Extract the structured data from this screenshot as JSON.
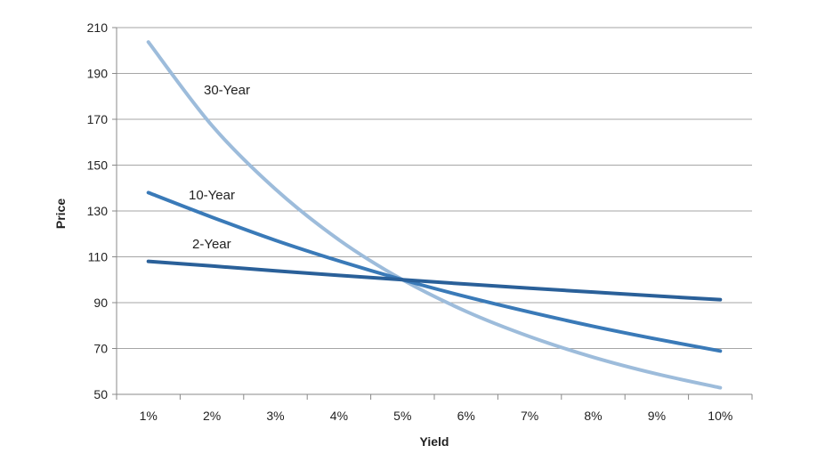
{
  "chart_data": {
    "type": "line",
    "title": "",
    "xlabel": "Yield",
    "ylabel": "Price",
    "categories": [
      "1%",
      "2%",
      "3%",
      "4%",
      "5%",
      "6%",
      "7%",
      "8%",
      "9%",
      "10%"
    ],
    "x": [
      1,
      2,
      3,
      4,
      5,
      6,
      7,
      8,
      9,
      10
    ],
    "ylim": [
      50,
      210
    ],
    "yticks": [
      50,
      70,
      90,
      110,
      130,
      150,
      170,
      190,
      210
    ],
    "grid": "horizontal",
    "legend": "inline labels",
    "series": [
      {
        "name": "2-Year",
        "color": "#2a6099",
        "values": [
          108.0,
          106.0,
          103.9,
          101.9,
          100.0,
          98.1,
          96.3,
          94.6,
          92.9,
          91.3
        ]
      },
      {
        "name": "10-Year",
        "color": "#3a7ab8",
        "values": [
          138.0,
          127.3,
          117.2,
          108.2,
          100.0,
          92.6,
          85.9,
          79.7,
          74.1,
          68.9
        ]
      },
      {
        "name": "30-Year",
        "color": "#9dbcdb",
        "values": [
          203.7,
          167.3,
          139.5,
          117.4,
          100.0,
          86.2,
          75.2,
          66.2,
          58.9,
          52.9
        ]
      }
    ]
  }
}
